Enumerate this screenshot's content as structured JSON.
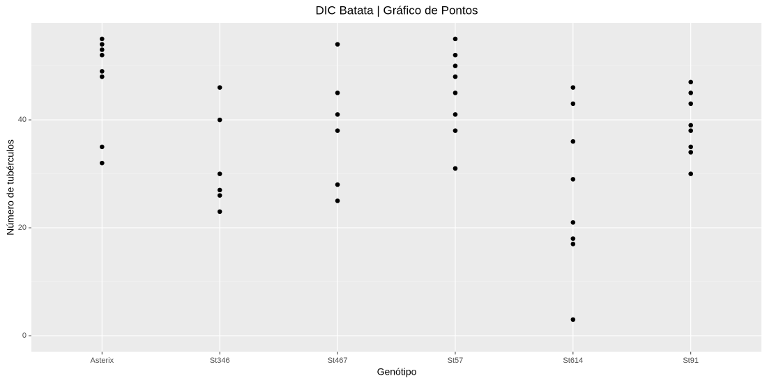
{
  "chart_data": {
    "type": "scatter",
    "title": "DIC Batata | Gráfico de Pontos",
    "x_label": "Genótipo",
    "y_label": "Número de tubérculos",
    "categories": [
      "Asterix",
      "St346",
      "St467",
      "St57",
      "St614",
      "St91"
    ],
    "x": [
      "Asterix",
      "Asterix",
      "Asterix",
      "Asterix",
      "Asterix",
      "Asterix",
      "Asterix",
      "Asterix",
      "St346",
      "St346",
      "St346",
      "St346",
      "St346",
      "St346",
      "St467",
      "St467",
      "St467",
      "St467",
      "St467",
      "St467",
      "St57",
      "St57",
      "St57",
      "St57",
      "St57",
      "St57",
      "St57",
      "St57",
      "St614",
      "St614",
      "St614",
      "St614",
      "St614",
      "St614",
      "St614",
      "St614",
      "St91",
      "St91",
      "St91",
      "St91",
      "St91",
      "St91",
      "St91",
      "St91"
    ],
    "y": [
      55,
      54,
      53,
      52,
      49,
      48,
      35,
      32,
      46,
      40,
      30,
      27,
      26,
      23,
      54,
      45,
      41,
      38,
      28,
      25,
      55,
      52,
      50,
      48,
      45,
      41,
      38,
      31,
      46,
      43,
      36,
      29,
      21,
      18,
      17,
      3,
      47,
      45,
      43,
      39,
      38,
      35,
      34,
      30
    ],
    "color": "#000000",
    "ylim": [
      -2.95,
      57.95
    ],
    "yticks": [
      0,
      20,
      40
    ],
    "y_minor_grid": [
      10,
      30,
      50
    ],
    "grid": true
  }
}
